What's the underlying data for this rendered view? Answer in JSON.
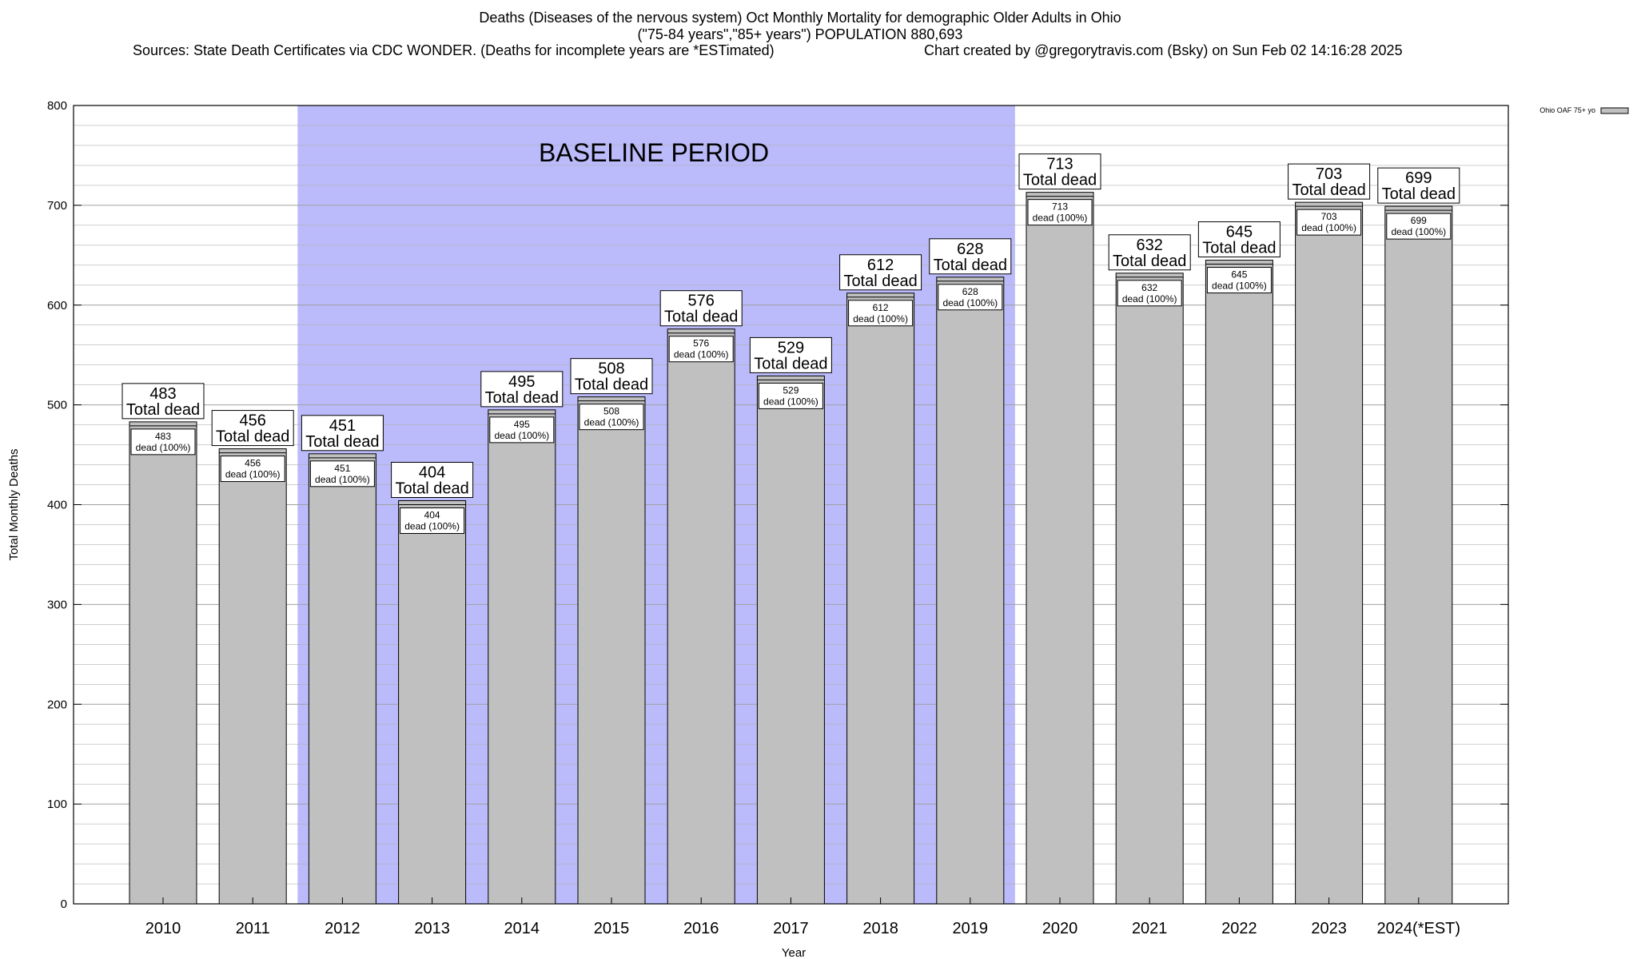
{
  "header": {
    "title_line1": "Deaths (Diseases of the nervous system) Oct Monthly Mortality for demographic Older Adults in Ohio",
    "title_line2": "(\"75-84 years\",\"85+ years\") POPULATION 880,693",
    "source": "Sources: State Death Certificates via CDC WONDER. (Deaths for incomplete years are *ESTimated)",
    "credit": "Chart created by @gregorytravis.com (Bsky) on Sun Feb 02 14:16:28 2025"
  },
  "colors": {
    "bar_fill": "#c0c0c0",
    "baseline_band": "#bbbbfb",
    "grid": "#b0b0b0"
  },
  "chart_data": {
    "type": "bar",
    "title": "Deaths (Diseases of the nervous system) Oct Monthly Mortality for demographic Older Adults in Ohio",
    "xlabel": "Year",
    "ylabel": "Total Monthly Deaths",
    "ylim": [
      0,
      800
    ],
    "yticks": [
      0,
      100,
      200,
      300,
      400,
      500,
      600,
      700,
      800
    ],
    "grid": true,
    "legend": {
      "position": "top-right",
      "entries": [
        "Ohio OAF 75+ yo"
      ]
    },
    "baseline": {
      "label": "BASELINE PERIOD",
      "start": "2012",
      "end": "2019"
    },
    "total_suffix": "Total dead",
    "inner_suffix": "dead (100%)",
    "categories": [
      "2010",
      "2011",
      "2012",
      "2013",
      "2014",
      "2015",
      "2016",
      "2017",
      "2018",
      "2019",
      "2020",
      "2021",
      "2022",
      "2023",
      "2024(*EST)"
    ],
    "series": [
      {
        "name": "Ohio OAF 75+ yo",
        "values": [
          483,
          456,
          451,
          404,
          495,
          508,
          576,
          529,
          612,
          628,
          713,
          632,
          645,
          703,
          699
        ]
      }
    ]
  }
}
